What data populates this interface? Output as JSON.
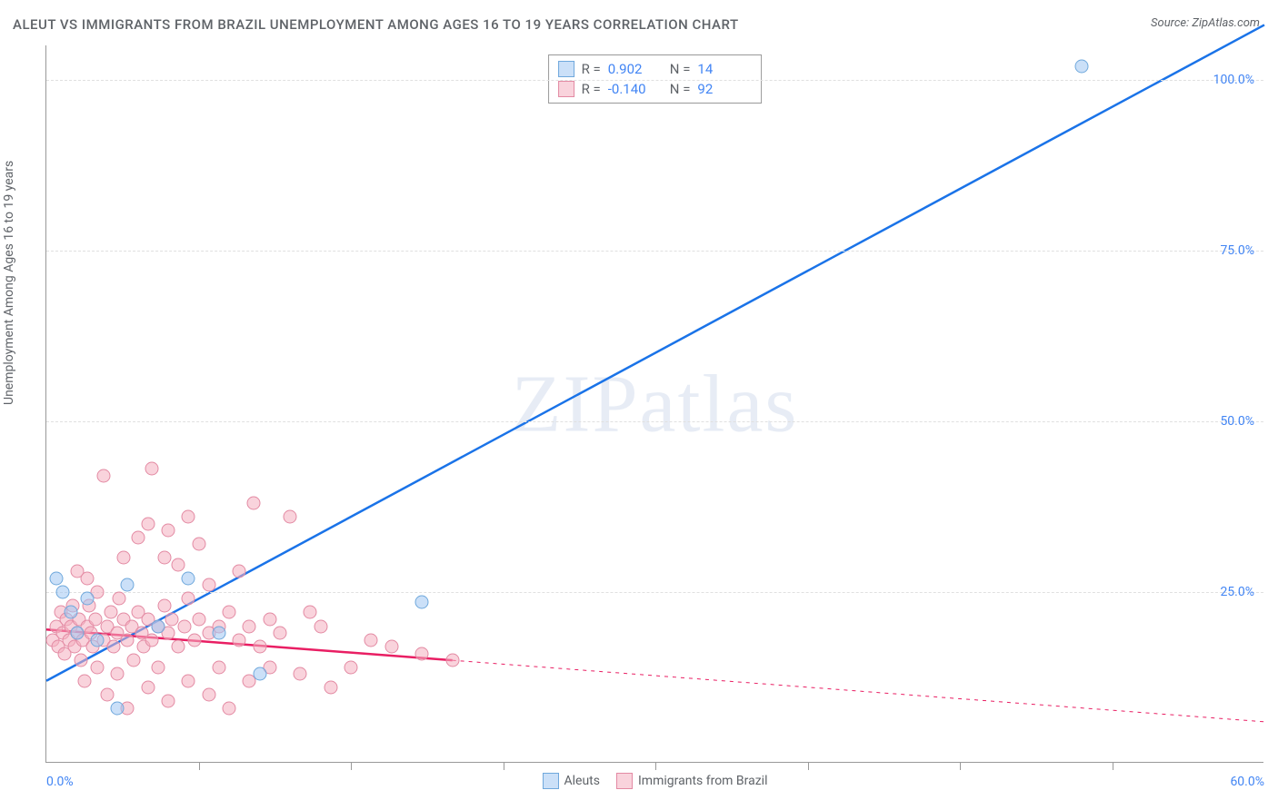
{
  "title": "ALEUT VS IMMIGRANTS FROM BRAZIL UNEMPLOYMENT AMONG AGES 16 TO 19 YEARS CORRELATION CHART",
  "source": "Source: ZipAtlas.com",
  "watermark": "ZIPatlas",
  "y_axis_label": "Unemployment Among Ages 16 to 19 years",
  "chart": {
    "type": "scatter-with-regression",
    "background_color": "#ffffff",
    "grid_color": "#e0e0e0",
    "axis_color": "#999999",
    "tick_label_color": "#4285f4",
    "text_color": "#5f6368",
    "xlim": [
      0,
      60
    ],
    "ylim": [
      0,
      105
    ],
    "y_ticks": [
      {
        "value": 25,
        "label": "25.0%"
      },
      {
        "value": 50,
        "label": "50.0%"
      },
      {
        "value": 75,
        "label": "75.0%"
      },
      {
        "value": 100,
        "label": "100.0%"
      }
    ],
    "x_ticks": [
      {
        "value": 0,
        "label": "0.0%",
        "align": "left"
      },
      {
        "value": 60,
        "label": "60.0%",
        "align": "right"
      }
    ],
    "x_minor_ticks": [
      7.5,
      15,
      22.5,
      30,
      37.5,
      45,
      52.5
    ],
    "series": [
      {
        "name": "Aleuts",
        "color_fill": "rgba(160,198,242,0.55)",
        "color_stroke": "#6fa8dc",
        "line_color": "#1a73e8",
        "line_width": 2.5,
        "R": "0.902",
        "N": "14",
        "regression": {
          "x1": 0,
          "y1": 12,
          "x2": 60,
          "y2": 108,
          "solid_until_x": 60
        },
        "points": [
          {
            "x": 0.5,
            "y": 27
          },
          {
            "x": 0.8,
            "y": 25
          },
          {
            "x": 1.2,
            "y": 22
          },
          {
            "x": 1.5,
            "y": 19
          },
          {
            "x": 2.0,
            "y": 24
          },
          {
            "x": 2.5,
            "y": 18
          },
          {
            "x": 3.5,
            "y": 8
          },
          {
            "x": 4.0,
            "y": 26
          },
          {
            "x": 5.5,
            "y": 20
          },
          {
            "x": 7.0,
            "y": 27
          },
          {
            "x": 8.5,
            "y": 19
          },
          {
            "x": 10.5,
            "y": 13
          },
          {
            "x": 18.5,
            "y": 23.5
          },
          {
            "x": 51.0,
            "y": 102
          }
        ]
      },
      {
        "name": "Immigrants from Brazil",
        "color_fill": "rgba(244,174,192,0.55)",
        "color_stroke": "#e38aa3",
        "line_color": "#e91e63",
        "line_width": 2.5,
        "R": "-0.140",
        "N": "92",
        "regression": {
          "x1": 0,
          "y1": 19.5,
          "x2": 60,
          "y2": 6,
          "solid_until_x": 20
        },
        "points": [
          {
            "x": 0.3,
            "y": 18
          },
          {
            "x": 0.5,
            "y": 20
          },
          {
            "x": 0.6,
            "y": 17
          },
          {
            "x": 0.7,
            "y": 22
          },
          {
            "x": 0.8,
            "y": 19
          },
          {
            "x": 0.9,
            "y": 16
          },
          {
            "x": 1.0,
            "y": 21
          },
          {
            "x": 1.1,
            "y": 18
          },
          {
            "x": 1.2,
            "y": 20
          },
          {
            "x": 1.3,
            "y": 23
          },
          {
            "x": 1.4,
            "y": 17
          },
          {
            "x": 1.5,
            "y": 19
          },
          {
            "x": 1.5,
            "y": 28
          },
          {
            "x": 1.6,
            "y": 21
          },
          {
            "x": 1.7,
            "y": 15
          },
          {
            "x": 1.8,
            "y": 18
          },
          {
            "x": 1.9,
            "y": 12
          },
          {
            "x": 2.0,
            "y": 20
          },
          {
            "x": 2.0,
            "y": 27
          },
          {
            "x": 2.1,
            "y": 23
          },
          {
            "x": 2.2,
            "y": 19
          },
          {
            "x": 2.3,
            "y": 17
          },
          {
            "x": 2.4,
            "y": 21
          },
          {
            "x": 2.5,
            "y": 14
          },
          {
            "x": 2.5,
            "y": 25
          },
          {
            "x": 2.8,
            "y": 18
          },
          {
            "x": 2.8,
            "y": 42
          },
          {
            "x": 3.0,
            "y": 20
          },
          {
            "x": 3.0,
            "y": 10
          },
          {
            "x": 3.2,
            "y": 22
          },
          {
            "x": 3.3,
            "y": 17
          },
          {
            "x": 3.5,
            "y": 19
          },
          {
            "x": 3.5,
            "y": 13
          },
          {
            "x": 3.6,
            "y": 24
          },
          {
            "x": 3.8,
            "y": 21
          },
          {
            "x": 3.8,
            "y": 30
          },
          {
            "x": 4.0,
            "y": 18
          },
          {
            "x": 4.0,
            "y": 8
          },
          {
            "x": 4.2,
            "y": 20
          },
          {
            "x": 4.3,
            "y": 15
          },
          {
            "x": 4.5,
            "y": 22
          },
          {
            "x": 4.5,
            "y": 33
          },
          {
            "x": 4.7,
            "y": 19
          },
          {
            "x": 4.8,
            "y": 17
          },
          {
            "x": 5.0,
            "y": 21
          },
          {
            "x": 5.0,
            "y": 11
          },
          {
            "x": 5.0,
            "y": 35
          },
          {
            "x": 5.2,
            "y": 18
          },
          {
            "x": 5.2,
            "y": 43
          },
          {
            "x": 5.5,
            "y": 20
          },
          {
            "x": 5.5,
            "y": 14
          },
          {
            "x": 5.8,
            "y": 23
          },
          {
            "x": 5.8,
            "y": 30
          },
          {
            "x": 6.0,
            "y": 19
          },
          {
            "x": 6.0,
            "y": 9
          },
          {
            "x": 6.0,
            "y": 34
          },
          {
            "x": 6.2,
            "y": 21
          },
          {
            "x": 6.5,
            "y": 17
          },
          {
            "x": 6.5,
            "y": 29
          },
          {
            "x": 6.8,
            "y": 20
          },
          {
            "x": 7.0,
            "y": 12
          },
          {
            "x": 7.0,
            "y": 24
          },
          {
            "x": 7.0,
            "y": 36
          },
          {
            "x": 7.3,
            "y": 18
          },
          {
            "x": 7.5,
            "y": 21
          },
          {
            "x": 7.5,
            "y": 32
          },
          {
            "x": 8.0,
            "y": 19
          },
          {
            "x": 8.0,
            "y": 10
          },
          {
            "x": 8.0,
            "y": 26
          },
          {
            "x": 8.5,
            "y": 20
          },
          {
            "x": 8.5,
            "y": 14
          },
          {
            "x": 9.0,
            "y": 22
          },
          {
            "x": 9.0,
            "y": 8
          },
          {
            "x": 9.5,
            "y": 18
          },
          {
            "x": 9.5,
            "y": 28
          },
          {
            "x": 10.0,
            "y": 20
          },
          {
            "x": 10.0,
            "y": 12
          },
          {
            "x": 10.2,
            "y": 38
          },
          {
            "x": 10.5,
            "y": 17
          },
          {
            "x": 11.0,
            "y": 21
          },
          {
            "x": 11.0,
            "y": 14
          },
          {
            "x": 11.5,
            "y": 19
          },
          {
            "x": 12.0,
            "y": 36
          },
          {
            "x": 12.5,
            "y": 13
          },
          {
            "x": 13.0,
            "y": 22
          },
          {
            "x": 13.5,
            "y": 20
          },
          {
            "x": 14.0,
            "y": 11
          },
          {
            "x": 15.0,
            "y": 14
          },
          {
            "x": 16.0,
            "y": 18
          },
          {
            "x": 17.0,
            "y": 17
          },
          {
            "x": 18.5,
            "y": 16
          },
          {
            "x": 20.0,
            "y": 15
          }
        ]
      }
    ],
    "legend_top": {
      "rows": [
        {
          "swatch_fill": "rgba(160,198,242,0.55)",
          "swatch_stroke": "#6fa8dc",
          "R_label": "R =",
          "R_val": "0.902",
          "N_label": "N =",
          "N_val": "14"
        },
        {
          "swatch_fill": "rgba(244,174,192,0.55)",
          "swatch_stroke": "#e38aa3",
          "R_label": "R =",
          "R_val": "-0.140",
          "N_label": "N =",
          "N_val": "92"
        }
      ]
    },
    "legend_bottom": [
      {
        "swatch_fill": "rgba(160,198,242,0.55)",
        "swatch_stroke": "#6fa8dc",
        "label": "Aleuts"
      },
      {
        "swatch_fill": "rgba(244,174,192,0.55)",
        "swatch_stroke": "#e38aa3",
        "label": "Immigrants from Brazil"
      }
    ]
  }
}
